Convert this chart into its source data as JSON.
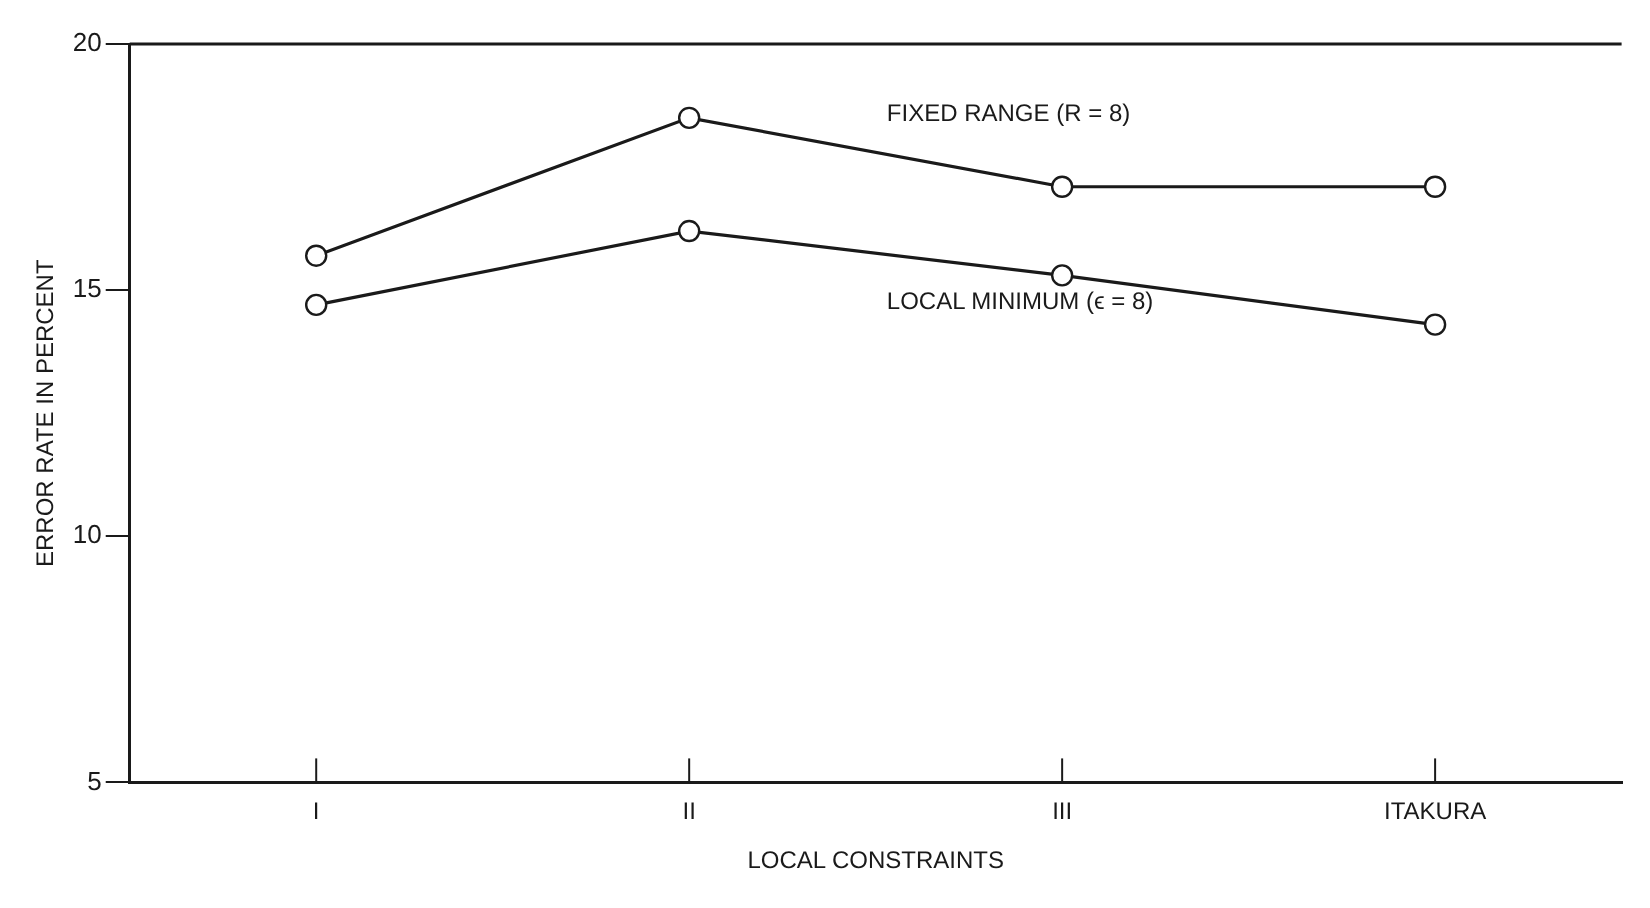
{
  "chart_data": {
    "type": "line",
    "xlabel": "LOCAL CONSTRAINTS",
    "ylabel": "ERROR RATE IN PERCENT",
    "categories": [
      "I",
      "II",
      "III",
      "ITAKURA"
    ],
    "series": [
      {
        "name": "FIXED RANGE (R = 8)",
        "color": "#1a1a1a",
        "values": [
          15.7,
          18.5,
          17.1,
          17.1
        ]
      },
      {
        "name": "LOCAL MINIMUM (ϵ = 8)",
        "color": "#1a1a1a",
        "values": [
          14.7,
          16.2,
          15.3,
          14.3
        ]
      }
    ],
    "ylim": [
      5,
      20
    ],
    "yticks": [
      5,
      10,
      15,
      20
    ],
    "grid": false,
    "legend": false,
    "marker": "circle",
    "line_style": "solid"
  }
}
